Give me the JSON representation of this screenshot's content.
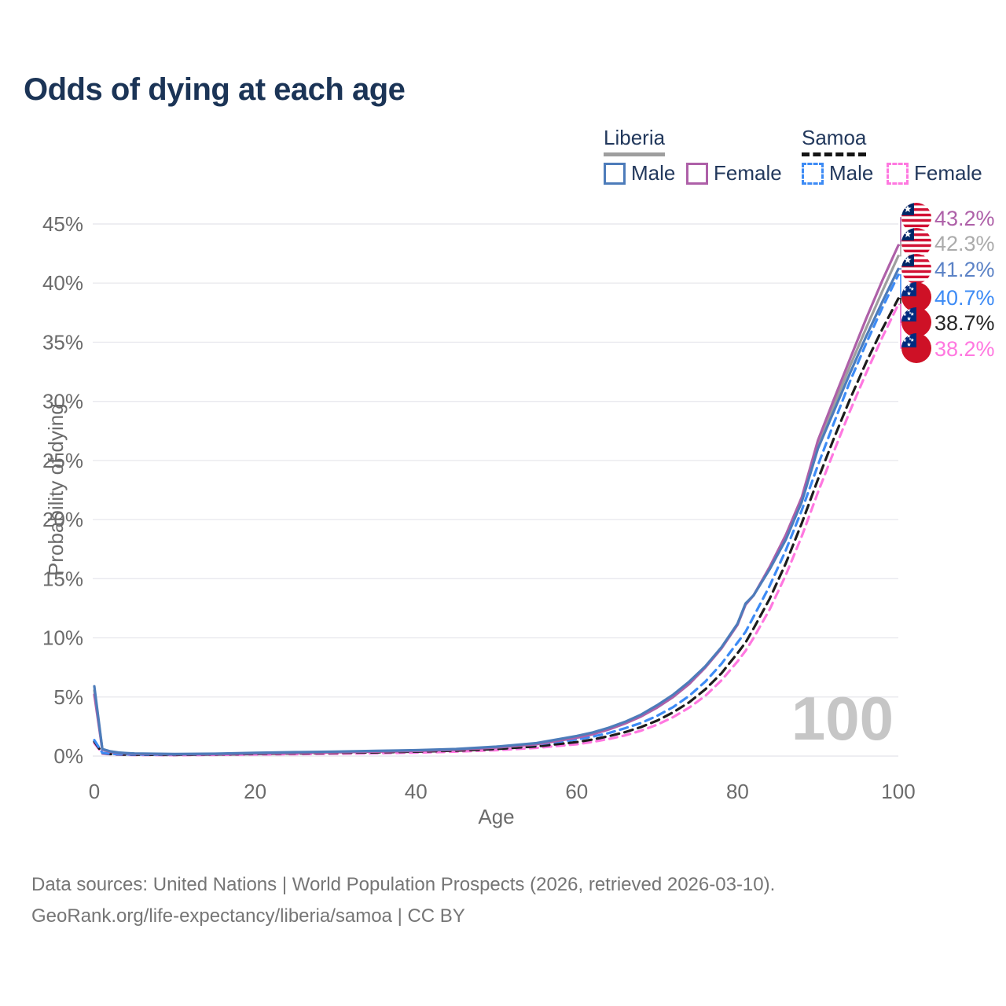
{
  "title": "Odds of dying at each age",
  "legend": {
    "groups": [
      {
        "name": "Liberia",
        "line_style": "solid",
        "underline_color": "#9e9e9e",
        "items": [
          {
            "label": "Male",
            "color": "#4d7cba"
          },
          {
            "label": "Female",
            "color": "#ae60a8"
          }
        ]
      },
      {
        "name": "Samoa",
        "line_style": "dashed",
        "underline_color": "#141414",
        "items": [
          {
            "label": "Male",
            "color": "#3d8bf5"
          },
          {
            "label": "Female",
            "color": "#ff78e0"
          }
        ]
      }
    ]
  },
  "footer": {
    "line1": "Data sources: United Nations | World Population Prospects (2026, retrieved 2026-03-10).",
    "line2": "GeoRank.org/life-expectancy/liberia/samoa | CC BY"
  },
  "chart_data": {
    "type": "line",
    "title": "Odds of dying at each age",
    "xlabel": "Age",
    "ylabel": "Probability of dying",
    "xlim": [
      0,
      100
    ],
    "ylim": [
      0,
      45
    ],
    "x_ticks": [
      0,
      20,
      40,
      60,
      80,
      100
    ],
    "y_ticks": [
      0,
      5,
      10,
      15,
      20,
      25,
      30,
      35,
      40,
      45
    ],
    "y_tick_suffix": "%",
    "grid": "horizontal",
    "legend_position": "top-right",
    "watermark": "100",
    "x": [
      0,
      1,
      2,
      3,
      4,
      5,
      10,
      15,
      20,
      25,
      30,
      35,
      40,
      45,
      50,
      55,
      60,
      62,
      64,
      66,
      68,
      70,
      72,
      74,
      76,
      78,
      80,
      81,
      82,
      84,
      86,
      88,
      90,
      92,
      94,
      96,
      98,
      100
    ],
    "series": [
      {
        "name": "Samoa — Female",
        "country": "Samoa",
        "sex": "female",
        "color": "#ff78e0",
        "dash": "10 7",
        "values": [
          1.1,
          0.22,
          0.15,
          0.12,
          0.1,
          0.09,
          0.08,
          0.1,
          0.13,
          0.16,
          0.2,
          0.24,
          0.29,
          0.37,
          0.5,
          0.7,
          1.0,
          1.2,
          1.45,
          1.75,
          2.15,
          2.65,
          3.3,
          4.1,
          5.1,
          6.4,
          8.0,
          8.9,
          10.0,
          12.4,
          15.3,
          18.6,
          22.3,
          25.8,
          29.2,
          32.4,
          35.4,
          38.2
        ]
      },
      {
        "name": "Samoa — Both sexes",
        "country": "Samoa",
        "sex": "both",
        "color": "#1c1c1c",
        "dash": "11 7",
        "values": [
          1.22,
          0.25,
          0.17,
          0.14,
          0.12,
          0.11,
          0.1,
          0.13,
          0.18,
          0.22,
          0.27,
          0.31,
          0.37,
          0.46,
          0.6,
          0.82,
          1.18,
          1.4,
          1.68,
          2.02,
          2.45,
          3.0,
          3.7,
          4.55,
          5.65,
          7.0,
          8.7,
          9.6,
          10.8,
          13.3,
          16.3,
          19.7,
          23.4,
          26.9,
          30.2,
          33.3,
          36.1,
          38.7
        ]
      },
      {
        "name": "Samoa — Male",
        "country": "Samoa",
        "sex": "male",
        "color": "#3d8bf5",
        "dash": "10 7",
        "values": [
          1.35,
          0.28,
          0.2,
          0.16,
          0.14,
          0.13,
          0.12,
          0.17,
          0.25,
          0.3,
          0.35,
          0.4,
          0.47,
          0.57,
          0.73,
          0.98,
          1.4,
          1.65,
          1.95,
          2.35,
          2.8,
          3.4,
          4.15,
          5.1,
          6.3,
          7.8,
          9.6,
          10.5,
          11.8,
          14.4,
          17.4,
          20.8,
          24.6,
          28.2,
          31.7,
          34.9,
          37.9,
          40.7
        ]
      },
      {
        "name": "Liberia — Both sexes",
        "country": "Liberia",
        "sex": "both",
        "color": "#9e9e9e",
        "dash": "",
        "values": [
          5.55,
          0.58,
          0.38,
          0.28,
          0.23,
          0.2,
          0.15,
          0.18,
          0.24,
          0.3,
          0.35,
          0.4,
          0.46,
          0.56,
          0.76,
          1.05,
          1.62,
          1.92,
          2.32,
          2.82,
          3.42,
          4.2,
          5.1,
          6.2,
          7.55,
          9.15,
          11.15,
          12.85,
          13.6,
          15.9,
          18.5,
          21.7,
          26.3,
          29.7,
          33.0,
          36.2,
          39.3,
          42.3
        ]
      },
      {
        "name": "Liberia — Female",
        "country": "Liberia",
        "sex": "female",
        "color": "#ae60a8",
        "dash": "",
        "values": [
          5.2,
          0.55,
          0.35,
          0.27,
          0.22,
          0.19,
          0.14,
          0.16,
          0.21,
          0.26,
          0.31,
          0.37,
          0.43,
          0.53,
          0.72,
          1.0,
          1.55,
          1.85,
          2.25,
          2.75,
          3.35,
          4.1,
          5.0,
          6.1,
          7.5,
          9.1,
          11.1,
          12.8,
          13.6,
          16.0,
          18.7,
          21.9,
          26.7,
          30.2,
          33.6,
          37.0,
          40.2,
          43.2
        ]
      },
      {
        "name": "Liberia — Male",
        "country": "Liberia",
        "sex": "male",
        "color": "#4d7cba",
        "dash": "",
        "values": [
          5.9,
          0.6,
          0.4,
          0.3,
          0.25,
          0.22,
          0.17,
          0.2,
          0.28,
          0.33,
          0.38,
          0.44,
          0.5,
          0.6,
          0.8,
          1.1,
          1.7,
          2.0,
          2.4,
          2.9,
          3.5,
          4.3,
          5.2,
          6.3,
          7.6,
          9.2,
          11.2,
          12.9,
          13.6,
          15.8,
          18.3,
          21.5,
          26.0,
          29.2,
          32.4,
          35.5,
          38.4,
          41.2
        ]
      }
    ],
    "end_labels": [
      {
        "flag": "liberia",
        "series": "Liberia — Female",
        "value": "43.2%",
        "color": "#ae60a8"
      },
      {
        "flag": "liberia",
        "series": "Liberia — Both sexes",
        "value": "42.3%",
        "color": "#ababab"
      },
      {
        "flag": "liberia",
        "series": "Liberia — Male",
        "value": "41.2%",
        "color": "#5b82c6"
      },
      {
        "flag": "samoa",
        "series": "Samoa — Male",
        "value": "40.7%",
        "color": "#3d8bf5"
      },
      {
        "flag": "samoa",
        "series": "Samoa — Both sexes",
        "value": "38.7%",
        "color": "#262626"
      },
      {
        "flag": "samoa",
        "series": "Samoa — Female",
        "value": "38.2%",
        "color": "#ff78e0"
      }
    ],
    "flags": {
      "liberia": {
        "red": "#D21034",
        "blue": "#002868",
        "white": "#ffffff"
      },
      "samoa": {
        "red": "#CE1126",
        "blue": "#002B7F",
        "white": "#ffffff"
      }
    }
  }
}
